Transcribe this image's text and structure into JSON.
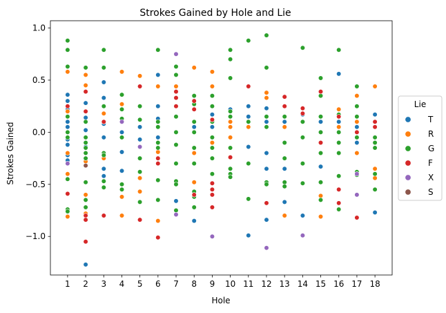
{
  "chart_data": {
    "type": "scatter",
    "title": "Strokes Gained by Hole and Lie",
    "xlabel": "Hole",
    "ylabel": "Strokes Gained",
    "x_ticks": [
      "1",
      "2",
      "3",
      "4",
      "5",
      "6",
      "7",
      "8",
      "9",
      "10",
      "11",
      "12",
      "13",
      "14",
      "15",
      "16",
      "17",
      "18"
    ],
    "y_ticks": [
      "1.0",
      "0.5",
      "0.0",
      "−0.5",
      "−1.0"
    ],
    "y_tick_values": [
      1.0,
      0.5,
      0.0,
      -0.5,
      -1.0
    ],
    "xlim": [
      0.05,
      18.95
    ],
    "ylim": [
      -1.37,
      1.07
    ],
    "grid": false,
    "legend": {
      "title": "Lie",
      "placement": "center-right, outside plot"
    },
    "series": [
      {
        "name": "T",
        "color": "#1f77b4",
        "points": [
          [
            1,
            0.36
          ],
          [
            1,
            0.3
          ],
          [
            1,
            0.22
          ],
          [
            1,
            0.1
          ],
          [
            1,
            0.05
          ],
          [
            1,
            -0.07
          ],
          [
            1,
            -0.12
          ],
          [
            1,
            -0.22
          ],
          [
            1,
            -0.27
          ],
          [
            2,
            0.28
          ],
          [
            2,
            0.14
          ],
          [
            2,
            0.02
          ],
          [
            2,
            -0.14
          ],
          [
            2,
            -1.27
          ],
          [
            3,
            0.48
          ],
          [
            3,
            0.33
          ],
          [
            3,
            0.08
          ],
          [
            3,
            -0.05
          ],
          [
            3,
            -0.35
          ],
          [
            3,
            -0.42
          ],
          [
            4,
            0.0
          ],
          [
            4,
            -0.19
          ],
          [
            4,
            -0.37
          ],
          [
            5,
            0.05
          ],
          [
            5,
            -0.07
          ],
          [
            6,
            0.55
          ],
          [
            6,
            0.25
          ],
          [
            6,
            0.13
          ],
          [
            6,
            -0.05
          ],
          [
            7,
            0.25
          ],
          [
            7,
            -0.66
          ],
          [
            8,
            0.05
          ],
          [
            8,
            -0.85
          ],
          [
            9,
            0.17
          ],
          [
            9,
            0.05
          ],
          [
            10,
            0.22
          ],
          [
            11,
            0.25
          ],
          [
            11,
            0.15
          ],
          [
            11,
            -0.14
          ],
          [
            11,
            -0.99
          ],
          [
            12,
            0.23
          ],
          [
            12,
            0.1
          ],
          [
            12,
            -0.2
          ],
          [
            12,
            -0.35
          ],
          [
            12,
            -0.84
          ],
          [
            13,
            0.1
          ],
          [
            13,
            -0.35
          ],
          [
            13,
            -0.67
          ],
          [
            14,
            0.17
          ],
          [
            14,
            -0.8
          ],
          [
            15,
            0.1
          ],
          [
            15,
            -0.33
          ],
          [
            16,
            0.56
          ],
          [
            16,
            0.1
          ],
          [
            17,
            0.05
          ],
          [
            17,
            -0.1
          ],
          [
            18,
            0.17
          ],
          [
            18,
            -0.77
          ]
        ]
      },
      {
        "name": "R",
        "color": "#ff7f0e",
        "points": [
          [
            1,
            0.58
          ],
          [
            1,
            0.2
          ],
          [
            1,
            -0.2
          ],
          [
            1,
            -0.4
          ],
          [
            1,
            -0.81
          ],
          [
            2,
            0.55
          ],
          [
            2,
            0.45
          ],
          [
            2,
            0.2
          ],
          [
            2,
            -0.28
          ],
          [
            2,
            -0.6
          ],
          [
            2,
            -0.78
          ],
          [
            3,
            0.18
          ],
          [
            3,
            -0.25
          ],
          [
            3,
            -0.8
          ],
          [
            4,
            0.58
          ],
          [
            4,
            0.27
          ],
          [
            4,
            -0.62
          ],
          [
            4,
            -0.8
          ],
          [
            5,
            0.54
          ],
          [
            5,
            0.44
          ],
          [
            5,
            -0.44
          ],
          [
            5,
            -0.57
          ],
          [
            6,
            0.44
          ],
          [
            6,
            -0.19
          ],
          [
            6,
            -0.85
          ],
          [
            7,
            0.44
          ],
          [
            7,
            -0.48
          ],
          [
            8,
            0.62
          ],
          [
            8,
            -0.2
          ],
          [
            8,
            -0.48
          ],
          [
            9,
            0.58
          ],
          [
            9,
            0.44
          ],
          [
            9,
            -0.1
          ],
          [
            10,
            0.1
          ],
          [
            10,
            0.05
          ],
          [
            10,
            -0.05
          ],
          [
            11,
            0.05
          ],
          [
            12,
            0.38
          ],
          [
            12,
            0.33
          ],
          [
            12,
            -0.5
          ],
          [
            13,
            0.05
          ],
          [
            13,
            -0.8
          ],
          [
            14,
            0.1
          ],
          [
            15,
            -0.61
          ],
          [
            15,
            -0.81
          ],
          [
            16,
            0.22
          ],
          [
            16,
            0.05
          ],
          [
            16,
            -0.2
          ],
          [
            17,
            0.35
          ],
          [
            17,
            0.1
          ],
          [
            17,
            -0.2
          ],
          [
            18,
            0.44
          ],
          [
            18,
            -0.35
          ],
          [
            18,
            -0.44
          ]
        ]
      },
      {
        "name": "G",
        "color": "#2ca02c",
        "points": [
          [
            1,
            0.88
          ],
          [
            1,
            0.79
          ],
          [
            1,
            0.63
          ],
          [
            1,
            0.15
          ],
          [
            1,
            0.0
          ],
          [
            1,
            -0.05
          ],
          [
            1,
            -0.45
          ],
          [
            1,
            -0.74
          ],
          [
            1,
            -0.76
          ],
          [
            2,
            0.62
          ],
          [
            2,
            0.1
          ],
          [
            2,
            -0.05
          ],
          [
            2,
            -0.1
          ],
          [
            2,
            -0.15
          ],
          [
            2,
            -0.2
          ],
          [
            2,
            -0.25
          ],
          [
            2,
            -0.48
          ],
          [
            2,
            -0.65
          ],
          [
            2,
            -0.72
          ],
          [
            3,
            0.79
          ],
          [
            3,
            0.62
          ],
          [
            3,
            0.25
          ],
          [
            3,
            0.1
          ],
          [
            3,
            -0.2
          ],
          [
            3,
            -0.22
          ],
          [
            3,
            -0.47
          ],
          [
            3,
            -0.53
          ],
          [
            4,
            0.36
          ],
          [
            4,
            0.22
          ],
          [
            4,
            0.13
          ],
          [
            4,
            -0.05
          ],
          [
            4,
            -0.5
          ],
          [
            4,
            -0.55
          ],
          [
            5,
            0.25
          ],
          [
            5,
            0.12
          ],
          [
            5,
            -0.25
          ],
          [
            5,
            -0.38
          ],
          [
            5,
            -0.67
          ],
          [
            6,
            0.79
          ],
          [
            6,
            0.1
          ],
          [
            6,
            0.05
          ],
          [
            6,
            -0.1
          ],
          [
            6,
            -0.15
          ],
          [
            6,
            -0.46
          ],
          [
            6,
            -0.65
          ],
          [
            7,
            0.63
          ],
          [
            7,
            0.55
          ],
          [
            7,
            0.15
          ],
          [
            7,
            0.0
          ],
          [
            7,
            -0.12
          ],
          [
            7,
            -0.3
          ],
          [
            7,
            -0.47
          ],
          [
            7,
            -0.5
          ],
          [
            7,
            -0.75
          ],
          [
            8,
            0.35
          ],
          [
            8,
            0.27
          ],
          [
            8,
            0.1
          ],
          [
            8,
            0.0
          ],
          [
            8,
            -0.15
          ],
          [
            8,
            -0.3
          ],
          [
            8,
            -0.57
          ],
          [
            8,
            -0.62
          ],
          [
            8,
            -0.72
          ],
          [
            9,
            0.35
          ],
          [
            9,
            0.25
          ],
          [
            9,
            0.1
          ],
          [
            9,
            -0.05
          ],
          [
            9,
            -0.15
          ],
          [
            9,
            -0.25
          ],
          [
            9,
            -0.4
          ],
          [
            10,
            0.79
          ],
          [
            10,
            0.7
          ],
          [
            10,
            0.52
          ],
          [
            10,
            0.2
          ],
          [
            10,
            0.15
          ],
          [
            10,
            -0.15
          ],
          [
            10,
            -0.35
          ],
          [
            10,
            -0.4
          ],
          [
            10,
            -0.43
          ],
          [
            11,
            0.88
          ],
          [
            11,
            0.1
          ],
          [
            11,
            -0.3
          ],
          [
            11,
            -0.64
          ],
          [
            12,
            0.93
          ],
          [
            12,
            0.62
          ],
          [
            12,
            0.15
          ],
          [
            12,
            0.05
          ],
          [
            12,
            -0.48
          ],
          [
            12,
            -0.5
          ],
          [
            13,
            0.15
          ],
          [
            13,
            -0.1
          ],
          [
            13,
            -0.25
          ],
          [
            13,
            -0.48
          ],
          [
            13,
            -0.52
          ],
          [
            14,
            0.81
          ],
          [
            14,
            0.1
          ],
          [
            14,
            -0.05
          ],
          [
            14,
            -0.3
          ],
          [
            14,
            -0.49
          ],
          [
            15,
            0.52
          ],
          [
            15,
            0.35
          ],
          [
            15,
            0.15
          ],
          [
            15,
            0.0
          ],
          [
            15,
            -0.2
          ],
          [
            15,
            -0.48
          ],
          [
            15,
            -0.65
          ],
          [
            16,
            0.79
          ],
          [
            16,
            0.17
          ],
          [
            16,
            0.0
          ],
          [
            16,
            -0.1
          ],
          [
            16,
            -0.2
          ],
          [
            16,
            -0.42
          ],
          [
            16,
            -0.74
          ],
          [
            17,
            0.44
          ],
          [
            17,
            0.25
          ],
          [
            17,
            0.15
          ],
          [
            17,
            -0.05
          ],
          [
            17,
            -0.38
          ],
          [
            17,
            -0.41
          ],
          [
            18,
            0.1
          ],
          [
            18,
            0.05
          ],
          [
            18,
            -0.05
          ],
          [
            18,
            -0.1
          ],
          [
            18,
            -0.15
          ],
          [
            18,
            -0.4
          ],
          [
            18,
            -0.55
          ]
        ]
      },
      {
        "name": "F",
        "color": "#d62728",
        "points": [
          [
            1,
            0.25
          ],
          [
            1,
            -0.59
          ],
          [
            2,
            0.39
          ],
          [
            2,
            0.2
          ],
          [
            2,
            -0.8
          ],
          [
            2,
            -0.84
          ],
          [
            2,
            -1.05
          ],
          [
            3,
            0.1
          ],
          [
            3,
            -0.8
          ],
          [
            5,
            0.44
          ],
          [
            5,
            -0.84
          ],
          [
            6,
            -0.25
          ],
          [
            6,
            -0.3
          ],
          [
            6,
            -1.01
          ],
          [
            7,
            0.39
          ],
          [
            7,
            0.33
          ],
          [
            7,
            0.25
          ],
          [
            8,
            0.3
          ],
          [
            8,
            0.22
          ],
          [
            8,
            -0.6
          ],
          [
            9,
            0.12
          ],
          [
            9,
            -0.49
          ],
          [
            9,
            -0.55
          ],
          [
            9,
            -0.6
          ],
          [
            9,
            -0.72
          ],
          [
            10,
            -0.24
          ],
          [
            11,
            0.44
          ],
          [
            12,
            -0.68
          ],
          [
            13,
            0.34
          ],
          [
            13,
            0.25
          ],
          [
            14,
            0.23
          ],
          [
            14,
            0.18
          ],
          [
            15,
            0.39
          ],
          [
            15,
            -0.1
          ],
          [
            16,
            0.15
          ],
          [
            16,
            -0.55
          ],
          [
            16,
            -0.68
          ],
          [
            17,
            0.0
          ],
          [
            17,
            -0.82
          ],
          [
            18,
            0.1
          ],
          [
            18,
            0.05
          ]
        ]
      },
      {
        "name": "X",
        "color": "#9467bd",
        "points": [
          [
            1,
            -0.3
          ],
          [
            4,
            0.1
          ],
          [
            5,
            -0.14
          ],
          [
            7,
            0.75
          ],
          [
            7,
            -0.79
          ],
          [
            9,
            -1.0
          ],
          [
            12,
            -1.11
          ],
          [
            14,
            -0.99
          ],
          [
            17,
            -0.4
          ],
          [
            17,
            -0.6
          ]
        ]
      },
      {
        "name": "S",
        "color": "#8c564b",
        "points": [
          [
            2,
            -0.32
          ]
        ]
      }
    ]
  }
}
